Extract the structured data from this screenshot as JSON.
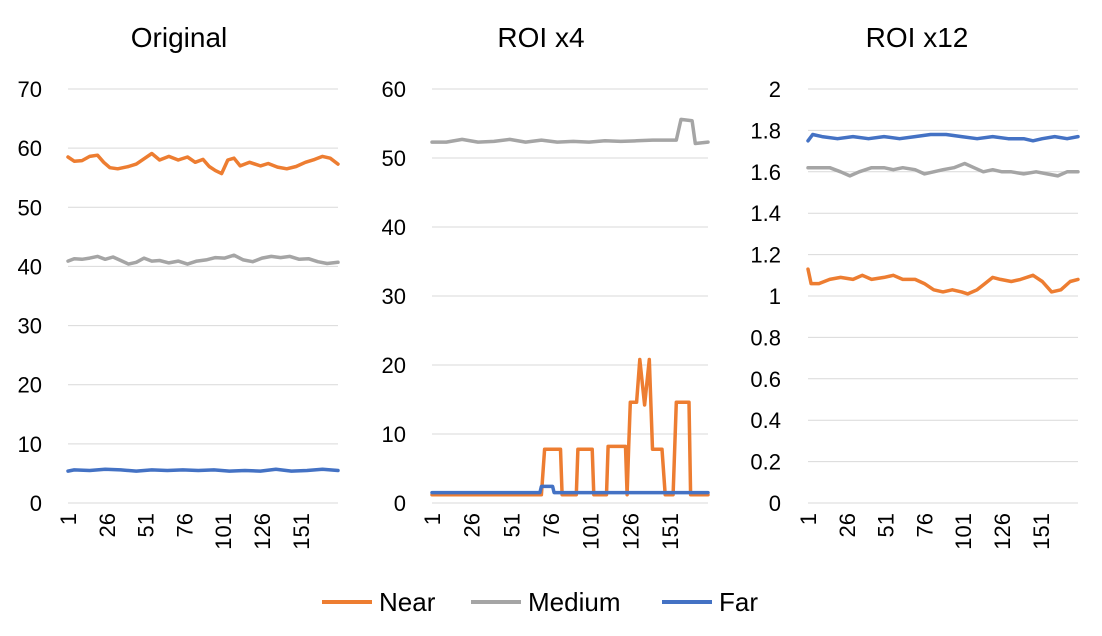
{
  "chart_data": [
    {
      "type": "line",
      "title": "Original",
      "ylim": [
        0,
        70
      ],
      "yticks": [
        "0",
        "10",
        "20",
        "30",
        "40",
        "50",
        "60",
        "70"
      ],
      "xticks": [
        "1",
        "26",
        "51",
        "76",
        "101",
        "126",
        "151"
      ],
      "x_count": 175,
      "series": [
        {
          "name": "Near",
          "color": "#ed7d31",
          "points": [
            [
              1,
              58.5
            ],
            [
              5,
              57.8
            ],
            [
              10,
              57.9
            ],
            [
              15,
              58.6
            ],
            [
              20,
              58.8
            ],
            [
              24,
              57.6
            ],
            [
              28,
              56.7
            ],
            [
              33,
              56.5
            ],
            [
              40,
              56.9
            ],
            [
              45,
              57.3
            ],
            [
              50,
              58.2
            ],
            [
              55,
              59.1
            ],
            [
              60,
              58.0
            ],
            [
              66,
              58.6
            ],
            [
              72,
              58.0
            ],
            [
              78,
              58.5
            ],
            [
              83,
              57.6
            ],
            [
              88,
              58.1
            ],
            [
              92,
              56.9
            ],
            [
              96,
              56.2
            ],
            [
              100,
              55.7
            ],
            [
              104,
              58.0
            ],
            [
              108,
              58.3
            ],
            [
              112,
              57.0
            ],
            [
              118,
              57.6
            ],
            [
              125,
              57.0
            ],
            [
              130,
              57.4
            ],
            [
              136,
              56.8
            ],
            [
              142,
              56.5
            ],
            [
              148,
              56.9
            ],
            [
              154,
              57.6
            ],
            [
              160,
              58.1
            ],
            [
              165,
              58.6
            ],
            [
              170,
              58.3
            ],
            [
              175,
              57.3
            ]
          ]
        },
        {
          "name": "Medium",
          "color": "#a5a5a5",
          "points": [
            [
              1,
              40.9
            ],
            [
              5,
              41.3
            ],
            [
              10,
              41.2
            ],
            [
              15,
              41.4
            ],
            [
              20,
              41.7
            ],
            [
              25,
              41.2
            ],
            [
              30,
              41.6
            ],
            [
              35,
              41.0
            ],
            [
              40,
              40.4
            ],
            [
              45,
              40.7
            ],
            [
              50,
              41.4
            ],
            [
              55,
              40.9
            ],
            [
              60,
              41.0
            ],
            [
              66,
              40.6
            ],
            [
              72,
              40.9
            ],
            [
              78,
              40.4
            ],
            [
              84,
              40.9
            ],
            [
              90,
              41.1
            ],
            [
              96,
              41.5
            ],
            [
              102,
              41.4
            ],
            [
              108,
              41.9
            ],
            [
              114,
              41.1
            ],
            [
              120,
              40.8
            ],
            [
              126,
              41.4
            ],
            [
              132,
              41.7
            ],
            [
              138,
              41.5
            ],
            [
              144,
              41.7
            ],
            [
              150,
              41.2
            ],
            [
              156,
              41.3
            ],
            [
              162,
              40.8
            ],
            [
              168,
              40.5
            ],
            [
              175,
              40.7
            ]
          ]
        },
        {
          "name": "Far",
          "color": "#4472c4",
          "points": [
            [
              1,
              5.4
            ],
            [
              5,
              5.6
            ],
            [
              15,
              5.5
            ],
            [
              25,
              5.7
            ],
            [
              35,
              5.6
            ],
            [
              45,
              5.4
            ],
            [
              55,
              5.6
            ],
            [
              65,
              5.5
            ],
            [
              75,
              5.6
            ],
            [
              85,
              5.5
            ],
            [
              95,
              5.6
            ],
            [
              105,
              5.4
            ],
            [
              115,
              5.5
            ],
            [
              125,
              5.4
            ],
            [
              135,
              5.7
            ],
            [
              145,
              5.4
            ],
            [
              155,
              5.5
            ],
            [
              165,
              5.7
            ],
            [
              175,
              5.5
            ]
          ]
        }
      ]
    },
    {
      "type": "line",
      "title": "ROI x4",
      "ylim": [
        0,
        60
      ],
      "yticks": [
        "0",
        "10",
        "20",
        "30",
        "40",
        "50",
        "60"
      ],
      "xticks": [
        "1",
        "26",
        "51",
        "76",
        "101",
        "126",
        "151"
      ],
      "x_count": 175,
      "series": [
        {
          "name": "Near",
          "color": "#ed7d31",
          "points": [
            [
              1,
              1.2
            ],
            [
              70,
              1.2
            ],
            [
              72,
              7.8
            ],
            [
              82,
              7.8
            ],
            [
              83,
              1.2
            ],
            [
              92,
              1.2
            ],
            [
              93,
              7.8
            ],
            [
              102,
              7.8
            ],
            [
              103,
              1.2
            ],
            [
              111,
              1.2
            ],
            [
              112,
              8.2
            ],
            [
              123,
              8.2
            ],
            [
              124,
              1.2
            ],
            [
              125,
              8.2
            ],
            [
              126,
              14.6
            ],
            [
              130,
              14.6
            ],
            [
              132,
              20.8
            ],
            [
              135,
              14.2
            ],
            [
              138,
              20.8
            ],
            [
              140,
              7.8
            ],
            [
              146,
              7.8
            ],
            [
              148,
              1.2
            ],
            [
              153,
              1.2
            ],
            [
              155,
              14.6
            ],
            [
              163,
              14.6
            ],
            [
              164,
              1.2
            ],
            [
              175,
              1.2
            ]
          ]
        },
        {
          "name": "Medium",
          "color": "#a5a5a5",
          "points": [
            [
              1,
              52.3
            ],
            [
              10,
              52.3
            ],
            [
              20,
              52.7
            ],
            [
              30,
              52.3
            ],
            [
              40,
              52.4
            ],
            [
              50,
              52.7
            ],
            [
              60,
              52.3
            ],
            [
              70,
              52.6
            ],
            [
              80,
              52.3
            ],
            [
              90,
              52.4
            ],
            [
              100,
              52.3
            ],
            [
              110,
              52.5
            ],
            [
              120,
              52.4
            ],
            [
              130,
              52.5
            ],
            [
              140,
              52.6
            ],
            [
              155,
              52.6
            ],
            [
              158,
              55.6
            ],
            [
              165,
              55.4
            ],
            [
              167,
              52.1
            ],
            [
              175,
              52.3
            ]
          ]
        },
        {
          "name": "Far",
          "color": "#4472c4",
          "points": [
            [
              1,
              1.5
            ],
            [
              69,
              1.5
            ],
            [
              70,
              2.4
            ],
            [
              77,
              2.4
            ],
            [
              78,
              1.5
            ],
            [
              175,
              1.5
            ]
          ]
        }
      ]
    },
    {
      "type": "line",
      "title": "ROI x12",
      "ylim": [
        0,
        2
      ],
      "yticks": [
        "0",
        "0.2",
        "0.4",
        "0.6",
        "0.8",
        "1",
        "1.2",
        "1.4",
        "1.6",
        "1.8",
        "2"
      ],
      "xticks": [
        "1",
        "26",
        "51",
        "76",
        "101",
        "126",
        "151"
      ],
      "x_count": 175,
      "series": [
        {
          "name": "Near",
          "color": "#ed7d31",
          "points": [
            [
              1,
              1.13
            ],
            [
              3,
              1.06
            ],
            [
              8,
              1.06
            ],
            [
              15,
              1.08
            ],
            [
              22,
              1.09
            ],
            [
              30,
              1.08
            ],
            [
              36,
              1.1
            ],
            [
              42,
              1.08
            ],
            [
              50,
              1.09
            ],
            [
              56,
              1.1
            ],
            [
              62,
              1.08
            ],
            [
              70,
              1.08
            ],
            [
              76,
              1.06
            ],
            [
              82,
              1.03
            ],
            [
              88,
              1.02
            ],
            [
              94,
              1.03
            ],
            [
              100,
              1.02
            ],
            [
              104,
              1.01
            ],
            [
              110,
              1.03
            ],
            [
              115,
              1.06
            ],
            [
              120,
              1.09
            ],
            [
              125,
              1.08
            ],
            [
              132,
              1.07
            ],
            [
              138,
              1.08
            ],
            [
              146,
              1.1
            ],
            [
              152,
              1.07
            ],
            [
              158,
              1.02
            ],
            [
              164,
              1.03
            ],
            [
              170,
              1.07
            ],
            [
              175,
              1.08
            ]
          ]
        },
        {
          "name": "Medium",
          "color": "#a5a5a5",
          "points": [
            [
              1,
              1.62
            ],
            [
              8,
              1.62
            ],
            [
              15,
              1.62
            ],
            [
              22,
              1.6
            ],
            [
              28,
              1.58
            ],
            [
              34,
              1.6
            ],
            [
              42,
              1.62
            ],
            [
              50,
              1.62
            ],
            [
              56,
              1.61
            ],
            [
              62,
              1.62
            ],
            [
              70,
              1.61
            ],
            [
              76,
              1.59
            ],
            [
              82,
              1.6
            ],
            [
              88,
              1.61
            ],
            [
              95,
              1.62
            ],
            [
              102,
              1.64
            ],
            [
              108,
              1.62
            ],
            [
              114,
              1.6
            ],
            [
              120,
              1.61
            ],
            [
              126,
              1.6
            ],
            [
              132,
              1.6
            ],
            [
              140,
              1.59
            ],
            [
              148,
              1.6
            ],
            [
              155,
              1.59
            ],
            [
              162,
              1.58
            ],
            [
              168,
              1.6
            ],
            [
              175,
              1.6
            ]
          ]
        },
        {
          "name": "Far",
          "color": "#4472c4",
          "points": [
            [
              1,
              1.75
            ],
            [
              4,
              1.78
            ],
            [
              10,
              1.77
            ],
            [
              20,
              1.76
            ],
            [
              30,
              1.77
            ],
            [
              40,
              1.76
            ],
            [
              50,
              1.77
            ],
            [
              60,
              1.76
            ],
            [
              70,
              1.77
            ],
            [
              80,
              1.78
            ],
            [
              90,
              1.78
            ],
            [
              100,
              1.77
            ],
            [
              110,
              1.76
            ],
            [
              120,
              1.77
            ],
            [
              130,
              1.76
            ],
            [
              140,
              1.76
            ],
            [
              146,
              1.75
            ],
            [
              152,
              1.76
            ],
            [
              160,
              1.77
            ],
            [
              168,
              1.76
            ],
            [
              175,
              1.77
            ]
          ]
        }
      ]
    }
  ],
  "legend": {
    "items": [
      {
        "label": "Near",
        "color": "#ed7d31"
      },
      {
        "label": "Medium",
        "color": "#a5a5a5"
      },
      {
        "label": "Far",
        "color": "#4472c4"
      }
    ]
  }
}
